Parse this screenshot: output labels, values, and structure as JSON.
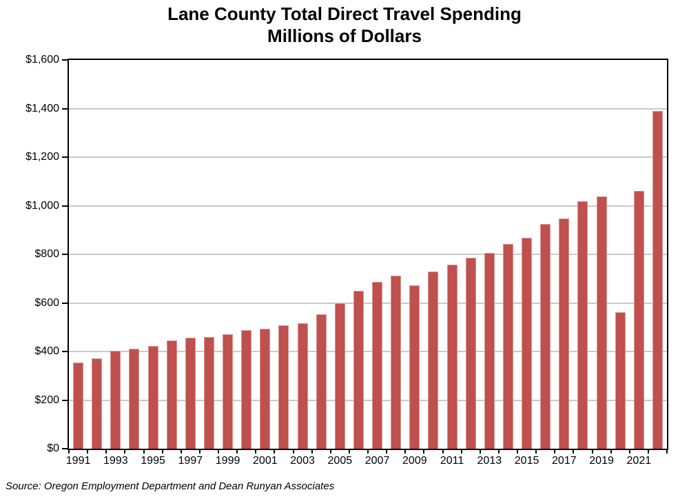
{
  "title": {
    "line1": "Lane County Total Direct Travel Spending",
    "line2": "Millions of Dollars"
  },
  "source_note": "Source: Oregon Employment Department and Dean Runyan Associates",
  "chart_data": {
    "type": "bar",
    "title": "Lane County Total Direct Travel Spending",
    "subtitle": "Millions of Dollars",
    "xlabel": "",
    "ylabel": "",
    "categories": [
      1991,
      1992,
      1993,
      1994,
      1995,
      1996,
      1997,
      1998,
      1999,
      2000,
      2001,
      2002,
      2003,
      2004,
      2005,
      2006,
      2007,
      2008,
      2009,
      2010,
      2011,
      2012,
      2013,
      2014,
      2015,
      2016,
      2017,
      2018,
      2019,
      2020,
      2021,
      2022
    ],
    "values": [
      355,
      372,
      402,
      412,
      424,
      445,
      456,
      459,
      470,
      487,
      493,
      507,
      517,
      552,
      599,
      650,
      686,
      712,
      672,
      728,
      758,
      785,
      807,
      842,
      867,
      926,
      947,
      1019,
      1039,
      563,
      1061,
      1390
    ],
    "ylim": [
      0,
      1600
    ],
    "ytick_interval": 200,
    "ytick_labels": [
      "$0",
      "$200",
      "$400",
      "$600",
      "$800",
      "$1,000",
      "$1,200",
      "$1,400",
      "$1,600"
    ],
    "xtick_labels": [
      "1991",
      "1993",
      "1995",
      "1997",
      "1999",
      "2001",
      "2003",
      "2005",
      "2007",
      "2009",
      "2011",
      "2013",
      "2015",
      "2017",
      "2019",
      "2021"
    ],
    "grid": true,
    "legend": "none",
    "bar_color": "#c0504d",
    "bar_edge_color": "#d99694",
    "gridline_color": "#c9c9c9",
    "axis_color": "#000000"
  }
}
